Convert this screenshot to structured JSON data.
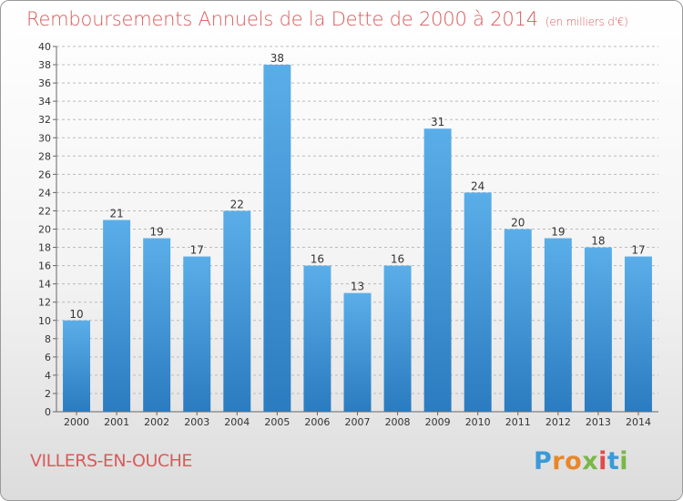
{
  "title": "Remboursements Annuels de la Dette de 2000 à 2014",
  "subtitle": "(en milliers d'€)",
  "commune": "VILLERS-EN-OUCHE",
  "logo_letters": [
    "P",
    "r",
    "o",
    "x",
    "i",
    "t",
    "i"
  ],
  "colors": {
    "title": "#d95b5b",
    "bar_top": "#5aaee8",
    "bar_bottom": "#2b7bc0",
    "grid": "#bbbbbb"
  },
  "chart_data": {
    "type": "bar",
    "categories": [
      "2000",
      "2001",
      "2002",
      "2003",
      "2004",
      "2005",
      "2006",
      "2007",
      "2008",
      "2009",
      "2010",
      "2011",
      "2012",
      "2013",
      "2014"
    ],
    "values": [
      10,
      21,
      19,
      17,
      22,
      38,
      16,
      13,
      16,
      31,
      24,
      20,
      19,
      18,
      17
    ],
    "title": "Remboursements Annuels de la Dette de 2000 à 2014",
    "xlabel": "",
    "ylabel": "",
    "ylim": [
      0,
      40
    ],
    "yticks": [
      0,
      2,
      4,
      6,
      8,
      10,
      12,
      14,
      16,
      18,
      20,
      22,
      24,
      26,
      28,
      30,
      32,
      34,
      36,
      38,
      40
    ],
    "grid": true,
    "data_labels": true
  }
}
